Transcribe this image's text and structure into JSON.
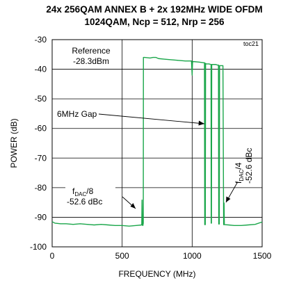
{
  "chart_data": {
    "type": "line",
    "title": "24x 256QAM ANNEX B + 2x 192MHz WIDE OFDM",
    "subtitle": "1024QAM, Ncp = 512, Nrp = 256",
    "tag": "toc21",
    "xlabel": "FREQUENCY (MHz)",
    "ylabel": "POWER (dB)",
    "xlim": [
      0,
      1500
    ],
    "ylim": [
      -100,
      -30
    ],
    "xticks": [
      0,
      500,
      1000,
      1500
    ],
    "yticks": [
      -100,
      -90,
      -80,
      -70,
      -60,
      -50,
      -40,
      -30
    ],
    "xtick_labels": [
      "0",
      "500",
      "1000",
      "1500"
    ],
    "ytick_labels": [
      "-100",
      "-90",
      "-80",
      "-70",
      "-60",
      "-50",
      "-40",
      "-30"
    ],
    "grid": true,
    "line_color": "#1aa64a",
    "series": [
      {
        "x": [
          0,
          20,
          60,
          100,
          150,
          200,
          250,
          300,
          350,
          400,
          450,
          500,
          550,
          600,
          640,
          642,
          645,
          648,
          651,
          652,
          655,
          660,
          700,
          720,
          740,
          760,
          800,
          850,
          900,
          950,
          995,
          1000,
          1003,
          1006,
          1050,
          1080,
          1088,
          1090,
          1092,
          1094,
          1096,
          1100,
          1120,
          1135,
          1136,
          1138,
          1140,
          1150,
          1170,
          1180,
          1188,
          1190,
          1192,
          1194,
          1196,
          1200,
          1220,
          1225,
          1228,
          1230,
          1260,
          1300,
          1350,
          1400,
          1450,
          1500
        ],
        "y": [
          -91.5,
          -92.0,
          -92.2,
          -92.2,
          -92.4,
          -92.2,
          -92.4,
          -92.6,
          -92.4,
          -92.6,
          -92.8,
          -92.8,
          -93.0,
          -92.8,
          -92.6,
          -84.2,
          -92.6,
          -92.8,
          -92.0,
          -36.0,
          -36.0,
          -36.0,
          -36.2,
          -36.0,
          -36.0,
          -36.4,
          -36.6,
          -36.8,
          -37.0,
          -37.2,
          -37.2,
          -42.0,
          -37.4,
          -37.4,
          -37.6,
          -37.8,
          -37.8,
          -92.5,
          -38.0,
          -92.5,
          -38.0,
          -38.2,
          -38.2,
          -38.4,
          -92.0,
          -92.0,
          -38.4,
          -38.4,
          -38.4,
          -38.6,
          -38.6,
          -92.3,
          -38.8,
          -92.3,
          -38.8,
          -38.8,
          -38.8,
          -92.5,
          -85.2,
          -92.5,
          -92.6,
          -92.8,
          -92.8,
          -92.6,
          -92.4,
          -91.6
        ]
      }
    ],
    "annotations": [
      {
        "id": "reference",
        "lines": [
          "Reference",
          "-28.3dBm"
        ],
        "x": 120,
        "y": -37
      },
      {
        "id": "gap",
        "text": "6MHz Gap",
        "x": 125,
        "y": -56,
        "arrow_to_x": 1092,
        "arrow_to_y": -62
      },
      {
        "id": "fdac8",
        "lines": [
          "f",
          "DAC",
          "/8",
          "-52.6 dBc"
        ],
        "x": 30,
        "y": -85,
        "arrow_to_x": 640,
        "arrow_to_y": -89
      },
      {
        "id": "fdac4",
        "lines": [
          "f",
          "DAC",
          "/4",
          "-52.6 dBc"
        ],
        "x": 1385,
        "y": -72,
        "arrow_to_x": 1232,
        "arrow_to_y": -87
      }
    ]
  }
}
